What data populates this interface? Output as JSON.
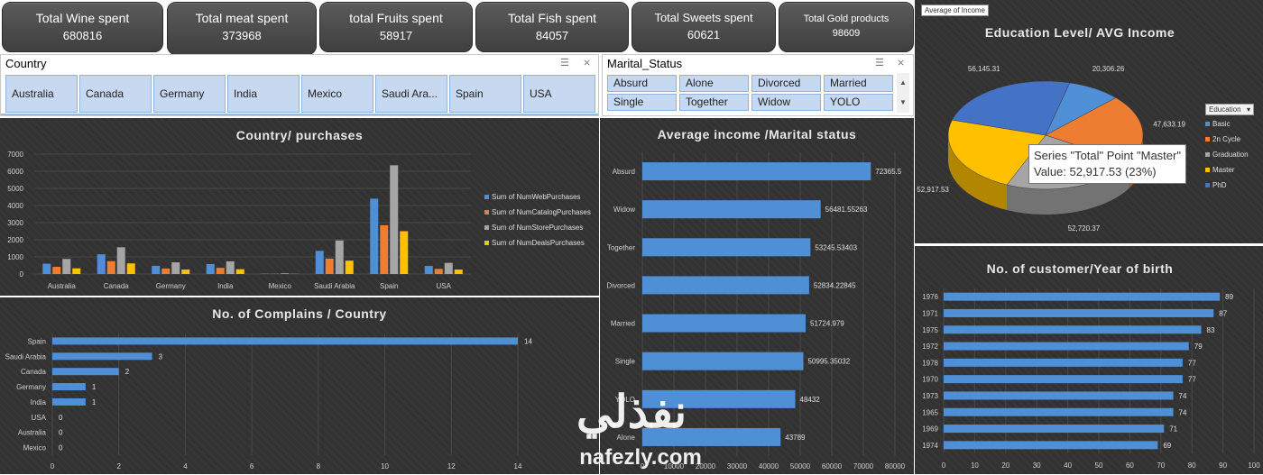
{
  "kpis": [
    {
      "title": "Total Wine spent",
      "value": "680816"
    },
    {
      "title": "Total meat spent",
      "value": "373968"
    },
    {
      "title": "total Fruits spent",
      "value": "58917"
    },
    {
      "title": "Total Fish  spent",
      "value": "84057"
    },
    {
      "title": "Total Sweets spent",
      "value": "60621"
    },
    {
      "title": "Total Gold products",
      "value": "98609"
    }
  ],
  "country_slicer": {
    "title": "Country",
    "items": [
      "Australia",
      "Canada",
      "Germany",
      "India",
      "Mexico",
      "Saudi Ara...",
      "Spain",
      "USA"
    ]
  },
  "marital_slicer": {
    "title": "Marital_Status",
    "items": [
      "Absurd",
      "Alone",
      "Divorced",
      "Married",
      "Single",
      "Together",
      "Widow",
      "YOLO"
    ]
  },
  "charts": {
    "purchases_title": "Country/ purchases",
    "complains_title": "No. of Complains / Country",
    "income_title": "Average income /Marital status",
    "edu_title": "Education Level/ AVG Income",
    "birth_title": "No. of customer/Year of birth",
    "pie_field_tag": "Average of  Income",
    "edu_legend_header": "Education",
    "tooltip_line1": "Series \"Total\" Point \"Master\"",
    "tooltip_line2": "Value: 52,917.53 (23%)"
  },
  "watermark": {
    "arabic": "نفذلي",
    "latin": "nafezly.com"
  },
  "chart_data": [
    {
      "type": "bar",
      "title": "Country/ purchases",
      "categories": [
        "Australia",
        "Canada",
        "Germany",
        "India",
        "Mexico",
        "Saudi Arabia",
        "Spain",
        "USA"
      ],
      "ylim": [
        0,
        7000
      ],
      "yticks": [
        0,
        1000,
        2000,
        3000,
        4000,
        5000,
        6000,
        7000
      ],
      "legend_position": "right",
      "series": [
        {
          "name": "Sum of NumWebPurchases",
          "color": "#4f8fd6",
          "values": [
            600,
            1150,
            480,
            580,
            20,
            1350,
            4400,
            470
          ]
        },
        {
          "name": "Sum of NumCatalogPurchases",
          "color": "#ed7d31",
          "values": [
            420,
            750,
            320,
            360,
            15,
            900,
            2850,
            300
          ]
        },
        {
          "name": "Sum of NumStorePurchases",
          "color": "#a5a5a5",
          "values": [
            880,
            1560,
            680,
            740,
            40,
            1960,
            6350,
            650
          ]
        },
        {
          "name": "Sum of NumDealsPurchases",
          "color": "#ffc000",
          "values": [
            330,
            620,
            260,
            280,
            10,
            780,
            2500,
            260
          ]
        }
      ]
    },
    {
      "type": "bar",
      "orientation": "horizontal",
      "title": "No. of Complains / Country",
      "categories": [
        "Spain",
        "Saudi Arabia",
        "Canada",
        "Germany",
        "India",
        "USA",
        "Australia",
        "Mexico"
      ],
      "values": [
        14,
        3,
        2,
        1,
        1,
        0,
        0,
        0
      ],
      "xlim": [
        0,
        14
      ],
      "xticks": [
        0,
        2,
        4,
        6,
        8,
        10,
        12,
        14
      ],
      "color": "#4f8fd6"
    },
    {
      "type": "bar",
      "orientation": "horizontal",
      "title": "Average income /Marital status",
      "categories": [
        "Absurd",
        "Widow",
        "Together",
        "Divorced",
        "Married",
        "Single",
        "YOLO",
        "Alone"
      ],
      "values": [
        72365.5,
        56481.55263,
        53245.53403,
        52834.22845,
        51724.979,
        50995.35032,
        48432,
        43789
      ],
      "labels": [
        "72365.5",
        "56481.55263",
        "53245.53403",
        "52834.22845",
        "51724.979",
        "50995.35032",
        "48432",
        "43789"
      ],
      "xlim": [
        0,
        80000
      ],
      "xticks": [
        0,
        10000,
        20000,
        30000,
        40000,
        50000,
        60000,
        70000,
        80000
      ],
      "color": "#4f8fd6"
    },
    {
      "type": "pie",
      "title": "Education Level/ AVG Income",
      "categories": [
        "Basic",
        "2n Cycle",
        "Graduation",
        "Master",
        "PhD"
      ],
      "values": [
        20306.26,
        47633.19,
        52720.37,
        52917.53,
        56145.31
      ],
      "labels": [
        "20,306.26",
        "47,633.19",
        "52,720.37",
        "52,917.53",
        "56,145.31"
      ],
      "colors": [
        "#4f8fd6",
        "#ed7d31",
        "#a5a5a5",
        "#ffc000",
        "#4472c4"
      ],
      "legend_position": "right"
    },
    {
      "type": "bar",
      "orientation": "horizontal",
      "title": "No. of customer/Year of birth",
      "categories": [
        "1976",
        "1971",
        "1975",
        "1972",
        "1978",
        "1970",
        "1973",
        "1965",
        "1969",
        "1974"
      ],
      "values": [
        89,
        87,
        83,
        79,
        77,
        77,
        74,
        74,
        71,
        69
      ],
      "xlim": [
        0,
        100
      ],
      "xticks": [
        0,
        10,
        20,
        30,
        40,
        50,
        60,
        70,
        80,
        90,
        100
      ],
      "color": "#4f8fd6"
    }
  ]
}
